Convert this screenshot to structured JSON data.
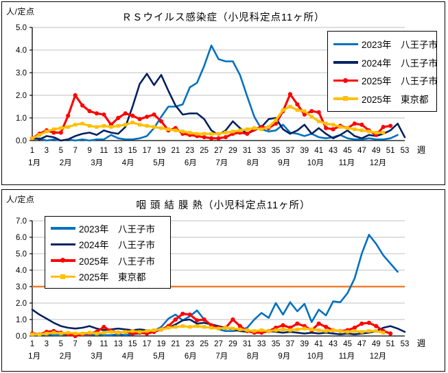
{
  "chart_data": [
    {
      "type": "line",
      "title": "ＲＳウイルス感染症（小児科定点11ヶ所）",
      "unit_label": "人/定点",
      "week_axis_label": "週",
      "legend_position": "top-right",
      "ylim": [
        0,
        5
      ],
      "ytick_labels": [
        "0.0",
        "1.0",
        "2.0",
        "3.0",
        "4.0",
        "5.0"
      ],
      "xlim": [
        1,
        53
      ],
      "xticks": [
        1,
        3,
        5,
        7,
        9,
        11,
        13,
        15,
        17,
        19,
        21,
        23,
        25,
        27,
        29,
        31,
        33,
        35,
        37,
        39,
        41,
        43,
        45,
        47,
        49,
        51,
        53
      ],
      "month_labels": [
        "1月",
        "2月",
        "3月",
        "4月",
        "5月",
        "6月",
        "7月",
        "8月",
        "9月",
        "10月",
        "11月",
        "12月"
      ],
      "grid": true,
      "threshold": null,
      "series": [
        {
          "label": "2023年　八王子市",
          "color": "#0070C0",
          "marker": "none",
          "values": [
            0.05,
            0.1,
            0.0,
            0.05,
            0.0,
            0.05,
            0.0,
            0.05,
            0.0,
            0.05,
            0.05,
            0.25,
            0.1,
            0.05,
            0.05,
            0.1,
            0.2,
            0.55,
            1.05,
            1.5,
            1.5,
            1.6,
            2.35,
            2.55,
            3.3,
            4.2,
            3.6,
            3.5,
            3.5,
            2.9,
            1.95,
            1.05,
            0.5,
            0.4,
            0.45,
            0.7,
            0.35,
            0.3,
            0.2,
            0.3,
            0.15,
            0.1,
            0.15,
            0.25,
            0.1,
            0.05,
            0.05,
            0.1,
            0.05,
            0.05,
            0.1,
            0.25
          ]
        },
        {
          "label": "2024年　八王子市",
          "color": "#002060",
          "marker": "none",
          "values": [
            0.15,
            0.05,
            0.2,
            0.15,
            0.0,
            0.05,
            0.2,
            0.3,
            0.35,
            0.25,
            0.45,
            0.35,
            0.3,
            0.6,
            1.5,
            2.5,
            2.95,
            2.45,
            2.9,
            2.2,
            1.55,
            1.15,
            1.2,
            1.2,
            0.95,
            0.45,
            0.25,
            0.45,
            0.85,
            0.55,
            0.3,
            0.45,
            0.6,
            0.95,
            1.0,
            0.5,
            0.3,
            0.45,
            0.7,
            0.3,
            0.55,
            0.3,
            0.1,
            0.25,
            0.45,
            0.2,
            0.1,
            0.25,
            0.2,
            0.3,
            0.45,
            0.75,
            0.15
          ]
        },
        {
          "label": "2025年　八王子市",
          "color": "#FF0000",
          "marker": "circle",
          "values": [
            0.1,
            0.3,
            0.45,
            0.35,
            0.35,
            1.1,
            2.0,
            1.55,
            1.3,
            1.2,
            1.15,
            0.7,
            1.0,
            1.2,
            1.1,
            0.95,
            1.05,
            1.15,
            0.85,
            0.45,
            0.55,
            0.3,
            0.25,
            0.2,
            0.15,
            0.1,
            0.1,
            0.15,
            0.3,
            0.35,
            0.3,
            0.5,
            0.6,
            0.55,
            0.75,
            1.3,
            2.05,
            1.6,
            1.15,
            1.3,
            1.25,
            0.55,
            0.5,
            0.65,
            0.55,
            0.75,
            0.7,
            0.45,
            0.25,
            0.6,
            0.65
          ]
        },
        {
          "label": "2025年　東京都",
          "color": "#FFC000",
          "marker": "square",
          "values": [
            0.1,
            0.25,
            0.4,
            0.5,
            0.55,
            0.6,
            0.7,
            0.75,
            0.65,
            0.6,
            0.65,
            0.6,
            0.65,
            0.7,
            0.8,
            0.7,
            0.65,
            0.6,
            0.55,
            0.5,
            0.45,
            0.4,
            0.35,
            0.3,
            0.3,
            0.3,
            0.3,
            0.35,
            0.4,
            0.45,
            0.5,
            0.55,
            0.5,
            0.6,
            0.9,
            1.35,
            1.5,
            1.35,
            1.3,
            1.05,
            0.85,
            0.75,
            0.7,
            0.6,
            0.55,
            0.5,
            0.45,
            0.4,
            0.35,
            0.35
          ]
        }
      ]
    },
    {
      "type": "line",
      "title": "咽 頭 結 膜 熱（小児科定点11ヶ所）",
      "unit_label": "人/定点",
      "week_axis_label": "週",
      "legend_position": "top-left",
      "ylim": [
        0,
        7
      ],
      "ytick_labels": [
        "0.0",
        "1.0",
        "2.0",
        "3.0",
        "4.0",
        "5.0",
        "6.0",
        "7.0"
      ],
      "xlim": [
        1,
        53
      ],
      "xticks": [
        1,
        3,
        5,
        7,
        9,
        11,
        13,
        15,
        17,
        19,
        21,
        23,
        25,
        27,
        29,
        31,
        33,
        35,
        37,
        39,
        41,
        43,
        45,
        47,
        49,
        51,
        53
      ],
      "month_labels": [
        "1月",
        "2月",
        "3月",
        "4月",
        "5月",
        "6月",
        "7月",
        "8月",
        "9月",
        "10月",
        "11月",
        "12月"
      ],
      "grid": true,
      "threshold": {
        "value": 3.0,
        "color": "#ED7D31"
      },
      "series": [
        {
          "label": "2023年　八王子市",
          "color": "#0070C0",
          "marker": "none",
          "values": [
            0.05,
            0.05,
            0.1,
            0.05,
            0.05,
            0.1,
            0.05,
            0.05,
            0.05,
            0.1,
            0.05,
            0.05,
            0.1,
            0.05,
            0.1,
            0.15,
            0.2,
            0.3,
            0.55,
            1.05,
            1.3,
            0.95,
            1.2,
            1.55,
            1.0,
            0.6,
            0.4,
            0.3,
            0.3,
            0.35,
            0.5,
            1.0,
            1.4,
            1.1,
            2.0,
            1.3,
            2.05,
            1.5,
            1.95,
            0.85,
            1.6,
            1.25,
            2.1,
            2.05,
            2.6,
            3.5,
            5.0,
            6.15,
            5.6,
            4.9,
            4.4,
            3.9
          ]
        },
        {
          "label": "2024年　八王子市",
          "color": "#002060",
          "marker": "none",
          "values": [
            1.6,
            1.3,
            1.05,
            0.8,
            0.6,
            0.5,
            0.45,
            0.5,
            0.6,
            0.45,
            0.35,
            0.4,
            0.45,
            0.4,
            0.35,
            0.4,
            0.35,
            0.3,
            0.4,
            0.5,
            0.7,
            0.95,
            1.0,
            0.75,
            0.8,
            0.7,
            0.6,
            0.5,
            0.4,
            0.3,
            0.25,
            0.3,
            0.25,
            0.3,
            0.25,
            0.2,
            0.25,
            0.2,
            0.15,
            0.2,
            0.15,
            0.2,
            0.15,
            0.1,
            0.15,
            0.1,
            0.15,
            0.2,
            0.3,
            0.5,
            0.6,
            0.45,
            0.25
          ]
        },
        {
          "label": "2025年　八王子市",
          "color": "#FF0000",
          "marker": "circle",
          "values": [
            0.15,
            0.1,
            0.25,
            0.3,
            0.2,
            0.1,
            0.0,
            0.1,
            0.15,
            0.25,
            0.55,
            0.3,
            0.2,
            0.25,
            0.15,
            0.2,
            0.15,
            0.25,
            0.4,
            0.6,
            1.0,
            1.35,
            1.3,
            0.95,
            1.0,
            0.65,
            0.5,
            0.5,
            1.0,
            0.6,
            0.3,
            0.2,
            0.2,
            0.3,
            0.5,
            0.65,
            0.5,
            0.75,
            0.6,
            0.35,
            0.75,
            0.55,
            0.35,
            0.3,
            0.35,
            0.5,
            0.75,
            0.8,
            0.6,
            0.3,
            0.15
          ]
        },
        {
          "label": "2025年　東京都",
          "color": "#FFC000",
          "marker": "square",
          "values": [
            0.1,
            0.1,
            0.15,
            0.2,
            0.15,
            0.2,
            0.15,
            0.15,
            0.2,
            0.15,
            0.2,
            0.25,
            0.2,
            0.25,
            0.3,
            0.25,
            0.3,
            0.35,
            0.4,
            0.5,
            0.55,
            0.6,
            0.55,
            0.6,
            0.55,
            0.5,
            0.45,
            0.5,
            0.45,
            0.4,
            0.35,
            0.3,
            0.35,
            0.3,
            0.35,
            0.4,
            0.35,
            0.4,
            0.45,
            0.4,
            0.35,
            0.3,
            0.35,
            0.3,
            0.25,
            0.3,
            0.25,
            0.3,
            0.3,
            0.2
          ]
        }
      ]
    }
  ],
  "style_colors": {
    "gridline": "#BFBFBF",
    "axis": "#000000",
    "box_border": "#000000"
  }
}
